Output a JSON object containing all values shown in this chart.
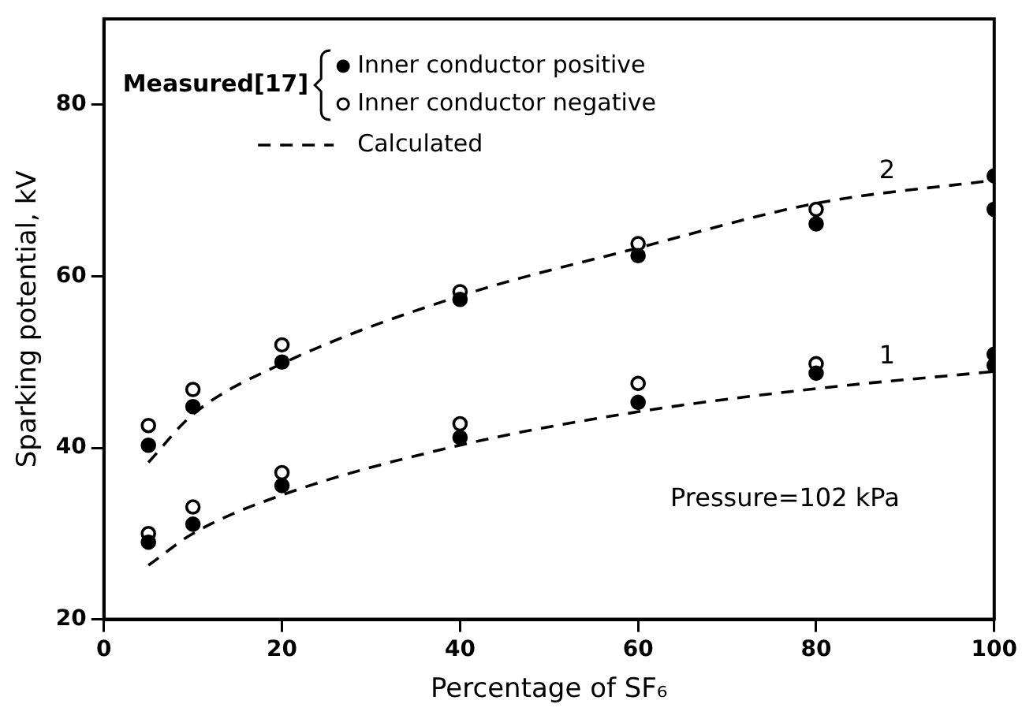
{
  "chart_data": {
    "type": "scatter",
    "xlabel": "Percentage of SF₆",
    "ylabel": "Sparking potential, kV",
    "legend_title": "Measured[17]",
    "legend": "top left",
    "xlim": [
      0,
      100
    ],
    "xticks": [
      0,
      20,
      40,
      60,
      80,
      100
    ],
    "ylim": [
      20,
      90
    ],
    "yticks": [
      20,
      40,
      60,
      80
    ],
    "grid": false,
    "series": [
      {
        "name": "Inner conductor positive",
        "marker": "circle",
        "color": "#000000",
        "x": [
          5,
          10,
          20,
          40,
          60,
          80,
          100,
          100,
          5,
          10,
          20,
          40,
          60,
          80,
          100,
          100
        ],
        "values": [
          40.3,
          44.8,
          50,
          57.3,
          62.4,
          66.1,
          71.7,
          67.8,
          29,
          31.1,
          35.6,
          41.2,
          45.3,
          48.7,
          50.9,
          49.6
        ]
      },
      {
        "name": "Inner conductor negative",
        "marker": "circle-open",
        "color": "#000000",
        "x": [
          5,
          10,
          20,
          40,
          60,
          80,
          5,
          10,
          20,
          40,
          60,
          80
        ],
        "values": [
          42.6,
          46.8,
          52,
          58.2,
          63.8,
          67.8,
          30,
          33.1,
          37.1,
          42.8,
          47.5,
          49.8
        ]
      },
      {
        "name": "Calculated",
        "type": "line",
        "marker": "none",
        "line_style": "dashed",
        "color": "#000000",
        "x": [
          5,
          10,
          20,
          40,
          60,
          80,
          100
        ],
        "values": [
          26.3,
          30,
          34.5,
          40.3,
          44.2,
          46.9,
          48.9
        ]
      },
      {
        "type": "line",
        "marker": "none",
        "line_style": "dashed",
        "color": "#000000",
        "x": [
          5,
          10,
          20,
          40,
          60,
          80,
          100
        ],
        "values": [
          38.3,
          43.9,
          49.8,
          57.7,
          63.3,
          68.5,
          71.2
        ]
      }
    ],
    "annotations": [
      {
        "text": "1",
        "x": 80,
        "y": 46.9
      },
      {
        "text": "2",
        "x": 80,
        "y": 68.5
      },
      "Pressure=102 kPa"
    ]
  }
}
